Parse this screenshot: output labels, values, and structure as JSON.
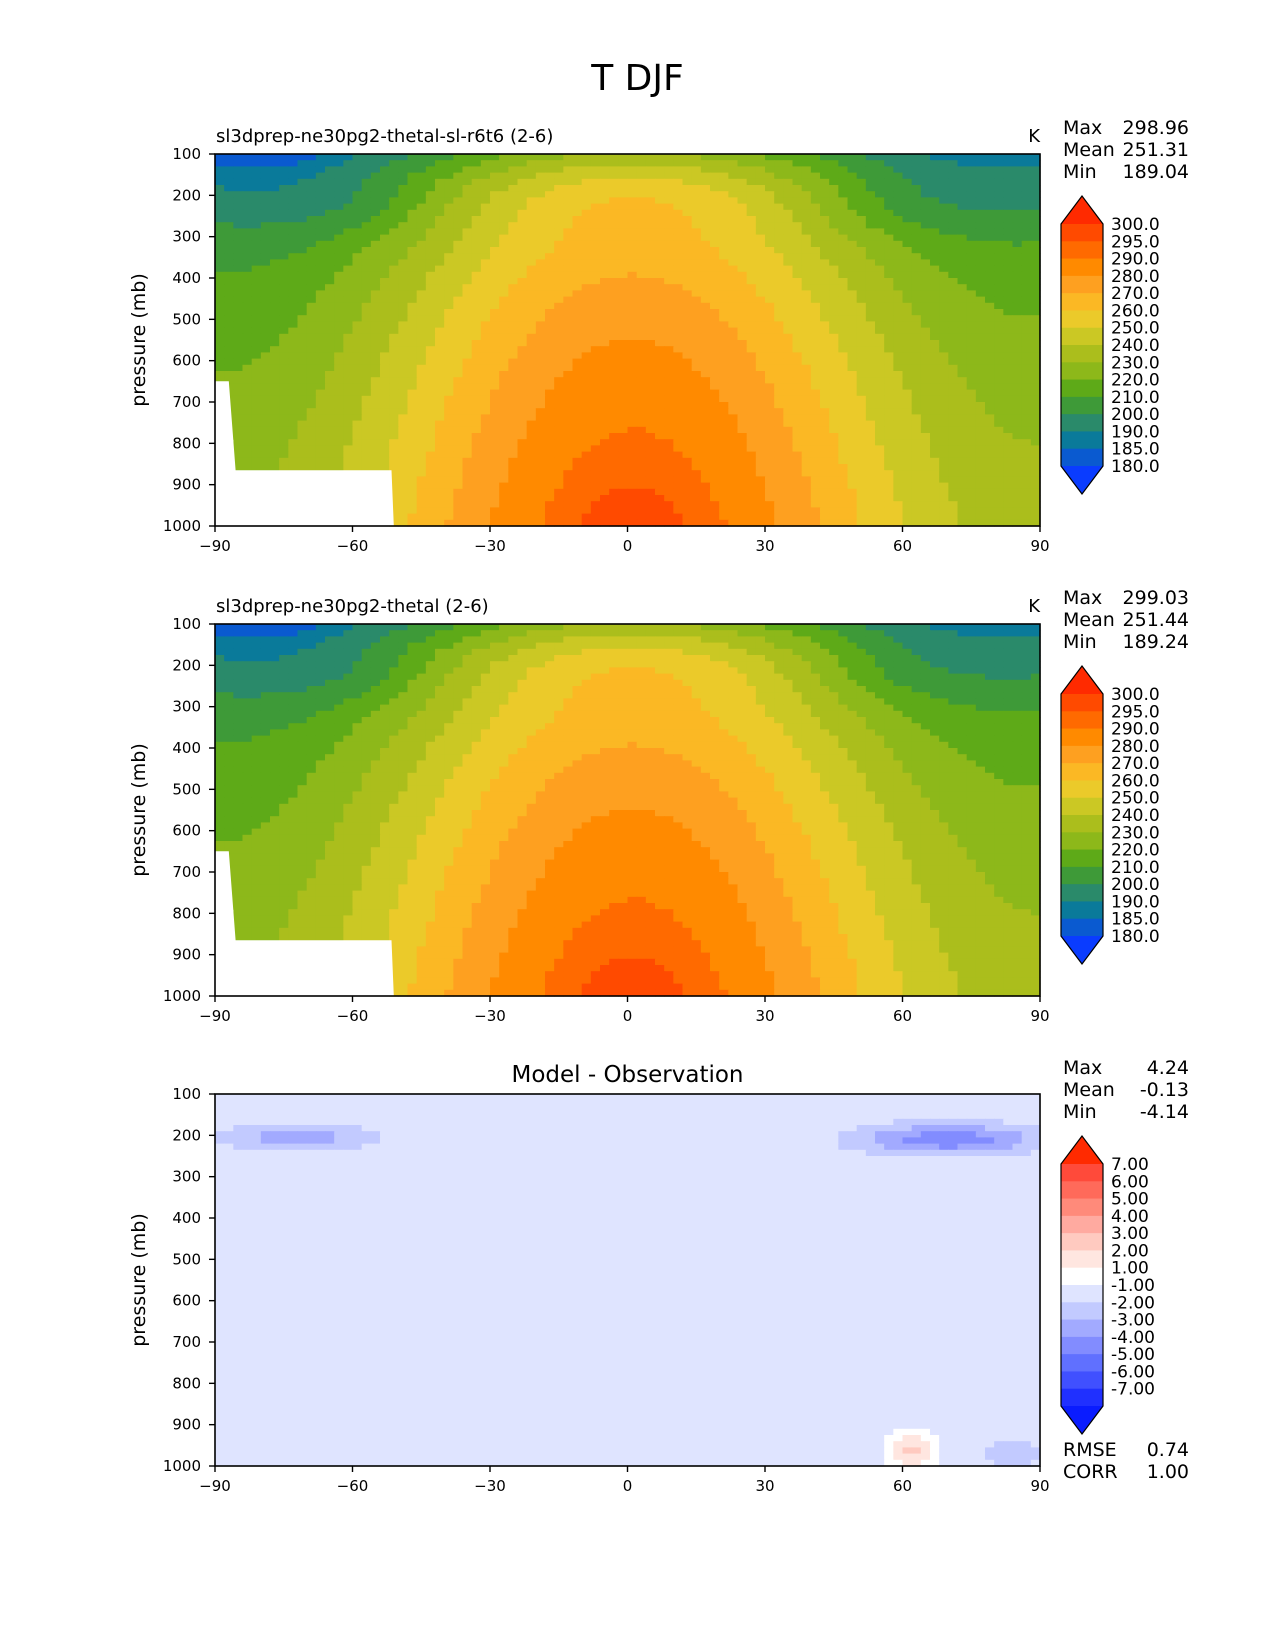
{
  "figure": {
    "title": "T DJF"
  },
  "chart_data": [
    {
      "type": "contour",
      "title": "sl3dprep-ne30pg2-thetal-sl-r6t6 (2-6)",
      "units": "K",
      "xlabel": "",
      "ylabel": "pressure (mb)",
      "xlim": [
        -90,
        90
      ],
      "ylim": [
        1000,
        100
      ],
      "xticks": [
        "−90",
        "−60",
        "−30",
        "0",
        "30",
        "60",
        "90"
      ],
      "yticks": [
        "100",
        "200",
        "300",
        "400",
        "500",
        "600",
        "700",
        "800",
        "900",
        "1000"
      ],
      "stats": [
        {
          "label": "Max",
          "value": "298.96"
        },
        {
          "label": "Mean",
          "value": "251.31"
        },
        {
          "label": "Min",
          "value": "189.04"
        }
      ],
      "colorbar": {
        "levels": [
          "300.0",
          "295.0",
          "290.0",
          "280.0",
          "270.0",
          "260.0",
          "250.0",
          "240.0",
          "230.0",
          "220.0",
          "210.0",
          "200.0",
          "190.0",
          "185.0",
          "180.0"
        ],
        "colors": [
          "#ff2a00",
          "#ff4a00",
          "#ff6a00",
          "#ff8a00",
          "#fea020",
          "#fbb824",
          "#ebca2a",
          "#cbc824",
          "#abbe1c",
          "#8db81a",
          "#5eaa18",
          "#3e9a38",
          "#2a8a6a",
          "#0a7a9a",
          "#0a5ad0",
          "#0a3cff"
        ]
      },
      "field": "temperature"
    },
    {
      "type": "contour",
      "title": "sl3dprep-ne30pg2-thetal (2-6)",
      "units": "K",
      "xlabel": "",
      "ylabel": "pressure (mb)",
      "xlim": [
        -90,
        90
      ],
      "ylim": [
        1000,
        100
      ],
      "xticks": [
        "−90",
        "−60",
        "−30",
        "0",
        "30",
        "60",
        "90"
      ],
      "yticks": [
        "100",
        "200",
        "300",
        "400",
        "500",
        "600",
        "700",
        "800",
        "900",
        "1000"
      ],
      "stats": [
        {
          "label": "Max",
          "value": "299.03"
        },
        {
          "label": "Mean",
          "value": "251.44"
        },
        {
          "label": "Min",
          "value": "189.24"
        }
      ],
      "colorbar": {
        "levels": [
          "300.0",
          "295.0",
          "290.0",
          "280.0",
          "270.0",
          "260.0",
          "250.0",
          "240.0",
          "230.0",
          "220.0",
          "210.0",
          "200.0",
          "190.0",
          "185.0",
          "180.0"
        ],
        "colors": [
          "#ff2a00",
          "#ff4a00",
          "#ff6a00",
          "#ff8a00",
          "#fea020",
          "#fbb824",
          "#ebca2a",
          "#cbc824",
          "#abbe1c",
          "#8db81a",
          "#5eaa18",
          "#3e9a38",
          "#2a8a6a",
          "#0a7a9a",
          "#0a5ad0",
          "#0a3cff"
        ]
      },
      "field": "temperature"
    },
    {
      "type": "contour",
      "title": "Model - Observation",
      "units": "",
      "xlabel": "",
      "ylabel": "pressure (mb)",
      "xlim": [
        -90,
        90
      ],
      "ylim": [
        1000,
        100
      ],
      "xticks": [
        "−90",
        "−60",
        "−30",
        "0",
        "30",
        "60",
        "90"
      ],
      "yticks": [
        "100",
        "200",
        "300",
        "400",
        "500",
        "600",
        "700",
        "800",
        "900",
        "1000"
      ],
      "stats": [
        {
          "label": "Max",
          "value": "4.24"
        },
        {
          "label": "Mean",
          "value": "-0.13"
        },
        {
          "label": "Min",
          "value": "-4.14"
        }
      ],
      "metrics": [
        {
          "label": "RMSE",
          "value": "0.74"
        },
        {
          "label": "CORR",
          "value": "1.00"
        }
      ],
      "colorbar": {
        "levels": [
          "7.00",
          "6.00",
          "5.00",
          "4.00",
          "3.00",
          "2.00",
          "1.00",
          "-1.00",
          "-2.00",
          "-3.00",
          "-4.00",
          "-5.00",
          "-6.00",
          "-7.00"
        ],
        "colors": [
          "#ff2a00",
          "#ff4a3a",
          "#ff6a5a",
          "#ff8a7a",
          "#ffaaa0",
          "#ffcac0",
          "#ffe6e0",
          "#ffffff",
          "#dfe4ff",
          "#c2caff",
          "#a2aaff",
          "#828cff",
          "#6070ff",
          "#4050ff",
          "#2030ff",
          "#0a1cff"
        ]
      },
      "field": "difference"
    }
  ]
}
